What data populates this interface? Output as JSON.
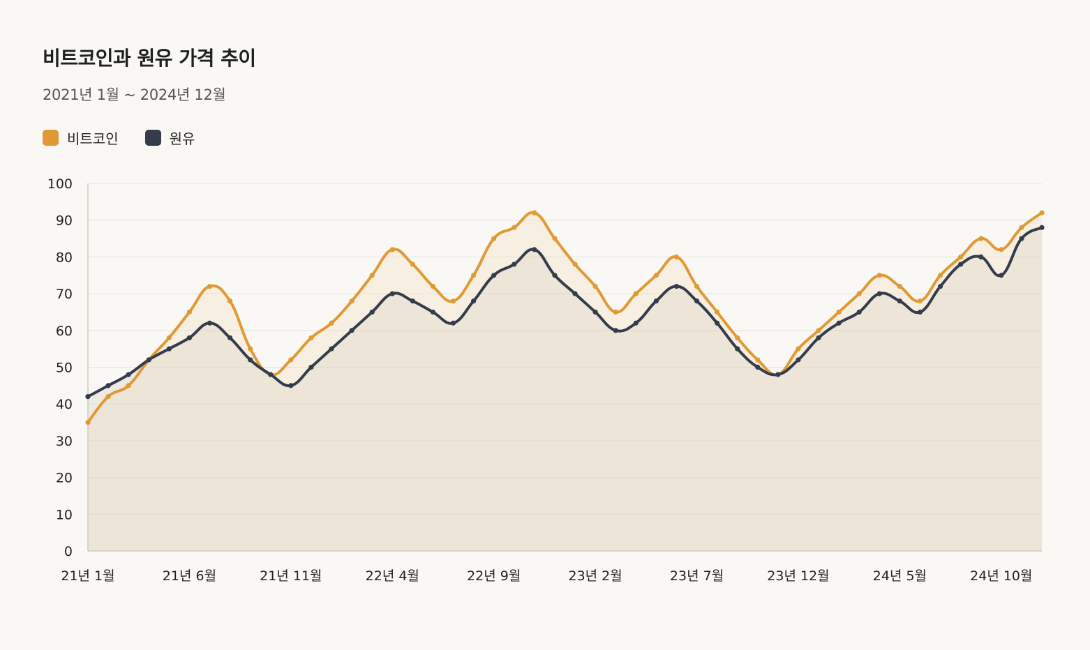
{
  "chart_data": {
    "type": "line",
    "title": "비트코인과 원유 가격 추이",
    "subtitle": "2021년 1월 ~ 2024년 12월",
    "ylim": [
      0,
      100
    ],
    "yticks": [
      0,
      10,
      20,
      30,
      40,
      50,
      60,
      70,
      80,
      90,
      100
    ],
    "grid": true,
    "legend_position": "top-left",
    "x": [
      "21년 1월",
      "21년 2월",
      "21년 3월",
      "21년 4월",
      "21년 5월",
      "21년 6월",
      "21년 7월",
      "21년 8월",
      "21년 9월",
      "21년 10월",
      "21년 11월",
      "21년 12월",
      "22년 1월",
      "22년 2월",
      "22년 3월",
      "22년 4월",
      "22년 5월",
      "22년 6월",
      "22년 7월",
      "22년 8월",
      "22년 9월",
      "22년 10월",
      "22년 11월",
      "22년 12월",
      "23년 1월",
      "23년 2월",
      "23년 3월",
      "23년 4월",
      "23년 5월",
      "23년 6월",
      "23년 7월",
      "23년 8월",
      "23년 9월",
      "23년 10월",
      "23년 11월",
      "23년 12월",
      "24년 1월",
      "24년 2월",
      "24년 3월",
      "24년 4월",
      "24년 5월",
      "24년 6월",
      "24년 7월",
      "24년 8월",
      "24년 9월",
      "24년 10월",
      "24년 11월",
      "24년 12월"
    ],
    "xtick_labels": [
      "21년 1월",
      "21년 6월",
      "21년 11월",
      "22년 4월",
      "22년 9월",
      "23년 2월",
      "23년 7월",
      "23년 12월",
      "24년 5월",
      "24년 10월"
    ],
    "series": [
      {
        "name": "비트코인",
        "color": "#e09a35",
        "values": [
          35,
          42,
          45,
          52,
          58,
          65,
          72,
          68,
          55,
          48,
          52,
          58,
          62,
          68,
          75,
          82,
          78,
          72,
          68,
          75,
          85,
          88,
          92,
          85,
          78,
          72,
          65,
          70,
          75,
          80,
          72,
          65,
          58,
          52,
          48,
          55,
          60,
          65,
          70,
          75,
          72,
          68,
          75,
          80,
          85,
          82,
          88,
          92
        ]
      },
      {
        "name": "원유",
        "color": "#343c4c",
        "values": [
          42,
          45,
          48,
          52,
          55,
          58,
          62,
          58,
          52,
          48,
          45,
          50,
          55,
          60,
          65,
          70,
          68,
          65,
          62,
          68,
          75,
          78,
          82,
          75,
          70,
          65,
          60,
          62,
          68,
          72,
          68,
          62,
          55,
          50,
          48,
          52,
          58,
          62,
          65,
          70,
          68,
          65,
          72,
          78,
          80,
          75,
          85,
          88
        ]
      }
    ]
  }
}
